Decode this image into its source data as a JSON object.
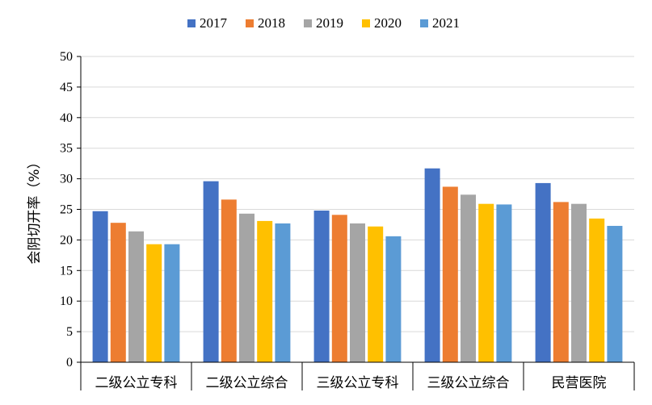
{
  "chart_data": {
    "type": "bar",
    "title": "",
    "xlabel": "",
    "ylabel": "会阴切开率（%）",
    "ylim": [
      0,
      50
    ],
    "ytick_step": 5,
    "yticks": [
      "0",
      "5",
      "10",
      "15",
      "20",
      "25",
      "30",
      "35",
      "40",
      "45",
      "50"
    ],
    "legend_position": "top-center",
    "grid": true,
    "categories": [
      "二级公立专科",
      "二级公立综合",
      "三级公立专科",
      "三级公立综合",
      "民营医院"
    ],
    "series": [
      {
        "name": "2017",
        "color": "#4472C4",
        "values": [
          24.7,
          29.6,
          24.8,
          31.7,
          29.3
        ]
      },
      {
        "name": "2018",
        "color": "#ED7D31",
        "values": [
          22.8,
          26.6,
          24.1,
          28.7,
          26.2
        ]
      },
      {
        "name": "2019",
        "color": "#A5A5A5",
        "values": [
          21.4,
          24.3,
          22.7,
          27.4,
          25.9
        ]
      },
      {
        "name": "2020",
        "color": "#FFC000",
        "values": [
          19.3,
          23.1,
          22.2,
          25.9,
          23.5
        ]
      },
      {
        "name": "2021",
        "color": "#5B9BD5",
        "values": [
          19.3,
          22.7,
          20.6,
          25.8,
          22.3
        ]
      }
    ]
  }
}
